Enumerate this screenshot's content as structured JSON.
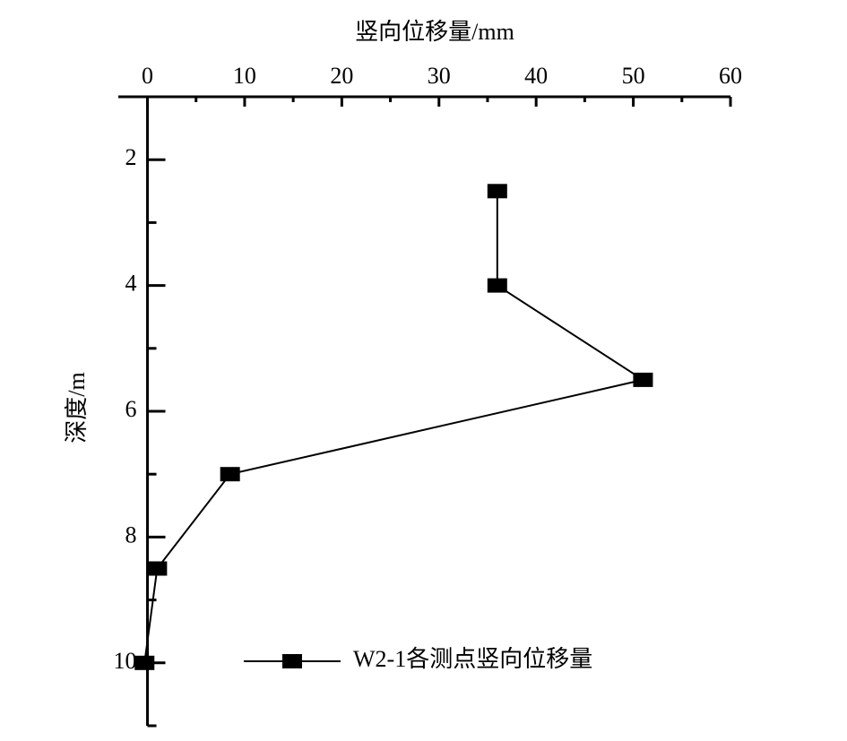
{
  "chart_data": {
    "type": "line",
    "xlabel": "竖向位移量/mm",
    "ylabel": "深度/m",
    "series": [
      {
        "name": "W2-1各测点竖向位移量",
        "color": "#000000",
        "x": [
          36,
          36,
          51,
          8.5,
          1,
          -0.3
        ],
        "values": [
          2.5,
          4,
          5.5,
          7,
          8.5,
          10
        ]
      }
    ],
    "xlim": [
      -3,
      60
    ],
    "xticks": [
      0,
      10,
      20,
      30,
      40,
      50,
      60
    ],
    "xminorticks": [
      5,
      15,
      25,
      35,
      45,
      55
    ],
    "ylim": [
      1,
      11
    ],
    "yticks": [
      2,
      4,
      6,
      8,
      10
    ],
    "yminorticks": [
      3,
      5,
      7,
      9,
      11
    ],
    "yreversed": true,
    "xaxis_position": "top",
    "legend": "lower right"
  }
}
